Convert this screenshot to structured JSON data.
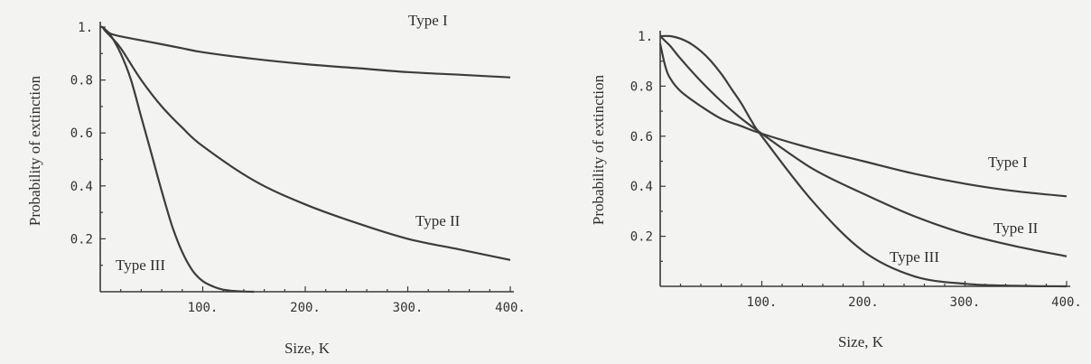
{
  "chart_data": [
    {
      "type": "line",
      "xlabel": "Size, K",
      "ylabel": "Probability of extinction",
      "xlim": [
        0,
        400
      ],
      "ylim": [
        0,
        1
      ],
      "xticks": [
        "100.",
        "200.",
        "300.",
        "400."
      ],
      "yticks": [
        "0.2",
        "0.4",
        "0.6",
        "0.8",
        "1."
      ],
      "grid": false,
      "legend": "none",
      "series": [
        {
          "name": "Type I",
          "x": [
            0,
            2,
            5,
            10,
            20,
            40,
            60,
            80,
            100,
            150,
            200,
            250,
            300,
            350,
            400
          ],
          "y": [
            1.0,
            1.0,
            0.99,
            0.975,
            0.965,
            0.95,
            0.935,
            0.92,
            0.905,
            0.88,
            0.86,
            0.845,
            0.83,
            0.82,
            0.81
          ]
        },
        {
          "name": "Type II",
          "x": [
            0,
            2,
            5,
            10,
            20,
            40,
            60,
            80,
            100,
            150,
            200,
            250,
            300,
            350,
            400
          ],
          "y": [
            1.0,
            1.0,
            0.985,
            0.965,
            0.92,
            0.8,
            0.7,
            0.62,
            0.55,
            0.42,
            0.33,
            0.26,
            0.2,
            0.16,
            0.12
          ]
        },
        {
          "name": "Type III",
          "x": [
            0,
            2,
            5,
            10,
            20,
            30,
            40,
            50,
            60,
            70,
            80,
            90,
            100,
            110,
            120,
            130,
            140,
            150
          ],
          "y": [
            1.0,
            1.0,
            0.99,
            0.97,
            0.9,
            0.8,
            0.66,
            0.52,
            0.38,
            0.25,
            0.15,
            0.08,
            0.04,
            0.02,
            0.008,
            0.003,
            0.001,
            0.0
          ]
        }
      ],
      "annotations": [
        "Type I",
        "Type II",
        "Type III"
      ]
    },
    {
      "type": "line",
      "xlabel": "Size, K",
      "ylabel": "Probability of extinction",
      "xlim": [
        0,
        400
      ],
      "ylim": [
        0,
        1
      ],
      "xticks": [
        "100.",
        "200.",
        "300.",
        "400."
      ],
      "yticks": [
        "0.2",
        "0.4",
        "0.6",
        "0.8",
        "1."
      ],
      "grid": false,
      "legend": "none",
      "series": [
        {
          "name": "Type I",
          "x": [
            0,
            5,
            10,
            20,
            40,
            60,
            80,
            100,
            150,
            200,
            250,
            300,
            350,
            400
          ],
          "y": [
            0.97,
            0.88,
            0.83,
            0.78,
            0.72,
            0.67,
            0.64,
            0.61,
            0.55,
            0.5,
            0.45,
            0.41,
            0.38,
            0.36
          ]
        },
        {
          "name": "Type II",
          "x": [
            0,
            5,
            10,
            20,
            40,
            60,
            80,
            100,
            150,
            200,
            250,
            300,
            350,
            400
          ],
          "y": [
            1.0,
            0.98,
            0.96,
            0.91,
            0.82,
            0.74,
            0.67,
            0.61,
            0.47,
            0.37,
            0.28,
            0.21,
            0.16,
            0.12
          ]
        },
        {
          "name": "Type III",
          "x": [
            0,
            10,
            20,
            30,
            40,
            50,
            60,
            70,
            80,
            90,
            100,
            150,
            200,
            250,
            300,
            350,
            400
          ],
          "y": [
            1.0,
            1.0,
            0.99,
            0.97,
            0.94,
            0.9,
            0.85,
            0.79,
            0.73,
            0.66,
            0.6,
            0.34,
            0.14,
            0.04,
            0.01,
            0.002,
            0.0
          ]
        }
      ],
      "annotations": [
        "Type I",
        "Type II",
        "Type III"
      ]
    }
  ]
}
